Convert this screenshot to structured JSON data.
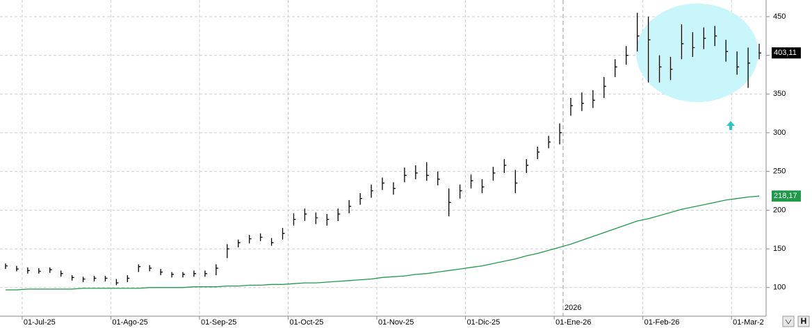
{
  "chart_data": {
    "type": "ohlc",
    "categories": [
      null,
      null,
      "01-Jul-25",
      null,
      null,
      null,
      null,
      null,
      null,
      null,
      "01-Ago-25",
      null,
      null,
      null,
      null,
      null,
      null,
      null,
      "01-Sep-25",
      null,
      null,
      null,
      null,
      null,
      null,
      null,
      "01-Oct-25",
      null,
      null,
      null,
      null,
      null,
      null,
      null,
      "01-Nov-25",
      null,
      null,
      null,
      null,
      null,
      null,
      null,
      "01-Dic-25",
      null,
      null,
      null,
      null,
      null,
      null,
      null,
      "01-Ene-26",
      null,
      null,
      null,
      null,
      null,
      null,
      null,
      "01-Feb-26",
      null,
      null,
      null,
      null,
      null,
      null,
      null,
      "01-Mar-2",
      null,
      null
    ],
    "high": [
      131,
      128,
      126,
      125,
      126,
      122,
      116,
      114,
      115,
      115,
      111,
      116,
      130,
      129,
      124,
      120,
      120,
      122,
      122,
      130,
      156,
      162,
      168,
      170,
      164,
      177,
      196,
      202,
      197,
      195,
      202,
      213,
      222,
      233,
      242,
      236,
      255,
      258,
      262,
      250,
      228,
      233,
      246,
      240,
      256,
      266,
      252,
      266,
      282,
      296,
      312,
      345,
      352,
      355,
      372,
      395,
      412,
      455,
      450,
      400,
      398,
      440,
      430,
      436,
      438,
      420,
      405,
      410,
      415
    ],
    "low": [
      124,
      121,
      118,
      118,
      119,
      114,
      109,
      107,
      108,
      108,
      103,
      107,
      120,
      121,
      116,
      113,
      113,
      114,
      114,
      116,
      138,
      152,
      157,
      160,
      154,
      162,
      180,
      186,
      182,
      180,
      186,
      196,
      207,
      216,
      226,
      220,
      236,
      240,
      238,
      232,
      192,
      215,
      228,
      222,
      238,
      248,
      222,
      248,
      266,
      280,
      285,
      322,
      328,
      332,
      345,
      372,
      388,
      405,
      365,
      365,
      368,
      395,
      398,
      408,
      412,
      392,
      375,
      358,
      395
    ],
    "close": [
      128,
      124,
      122,
      121,
      123,
      118,
      113,
      111,
      112,
      112,
      106,
      112,
      127,
      125,
      120,
      117,
      117,
      118,
      118,
      125,
      150,
      158,
      163,
      165,
      158,
      170,
      188,
      195,
      190,
      188,
      195,
      205,
      215,
      225,
      235,
      228,
      245,
      248,
      245,
      240,
      210,
      225,
      238,
      230,
      248,
      258,
      235,
      258,
      275,
      288,
      300,
      335,
      338,
      342,
      360,
      385,
      400,
      425,
      420,
      385,
      382,
      415,
      410,
      422,
      425,
      405,
      385,
      390,
      403.11
    ],
    "color": "#000000",
    "last_label": "403,11",
    "overlay": {
      "type": "line",
      "color": "#1f9a4a",
      "last_label": "218,17",
      "values": [
        97,
        97,
        98,
        98,
        98,
        98,
        98,
        99,
        99,
        99,
        99,
        99,
        99,
        100,
        100,
        100,
        100,
        101,
        101,
        101,
        102,
        102,
        103,
        103,
        104,
        104,
        105,
        106,
        106,
        107,
        108,
        109,
        110,
        111,
        113,
        114,
        115,
        117,
        118,
        120,
        122,
        124,
        126,
        128,
        131,
        134,
        137,
        141,
        144,
        148,
        152,
        156,
        161,
        166,
        171,
        176,
        181,
        186,
        189,
        193,
        197,
        201,
        204,
        207,
        210,
        213,
        215,
        217,
        218.17
      ]
    },
    "year_label": "2026",
    "ylim": [
      63,
      471.5
    ],
    "yticks": [
      100,
      150,
      200,
      250,
      300,
      350,
      400,
      450
    ],
    "grid": true
  }
}
